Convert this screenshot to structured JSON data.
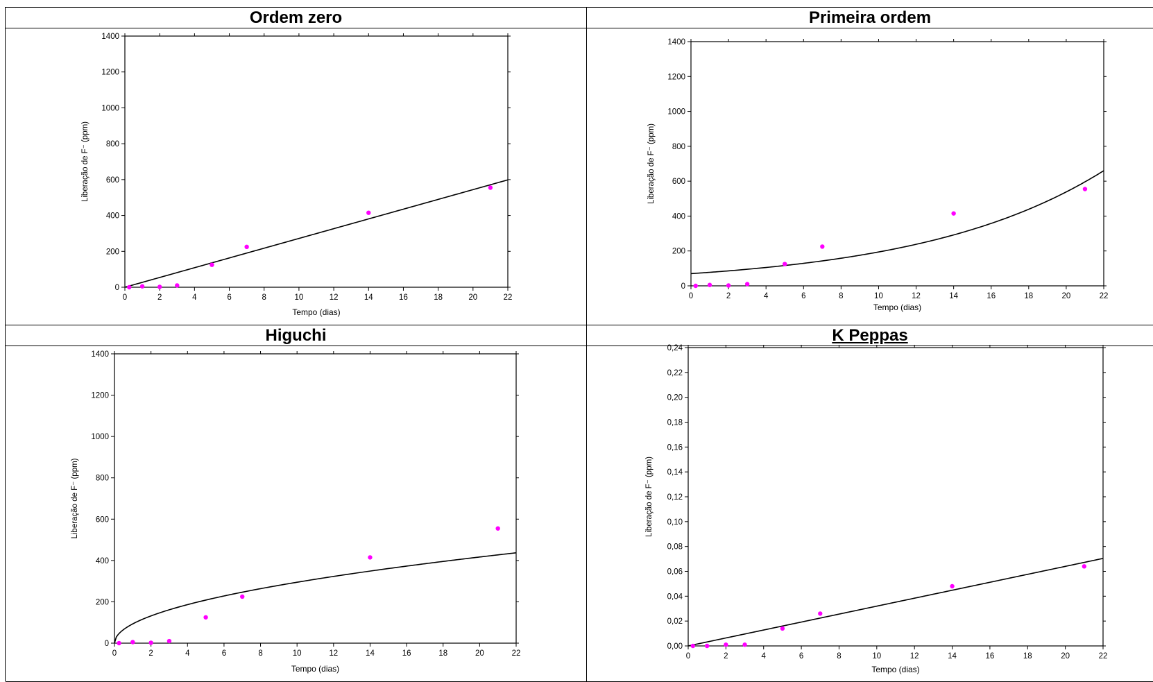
{
  "colors": {
    "points": "#ff00ff",
    "curve": "#000000",
    "frame": "#000000"
  },
  "chart_data": [
    {
      "type": "scatter",
      "title": "Ordem zero",
      "xlabel": "Tempo (dias)",
      "ylabel": "Liberação de F⁻ (ppm)",
      "xlim": [
        0,
        22
      ],
      "ylim": [
        0,
        1400
      ],
      "xticks": [
        "0",
        "2",
        "4",
        "6",
        "8",
        "10",
        "12",
        "14",
        "16",
        "18",
        "20",
        "22"
      ],
      "yticks": [
        "0",
        "200",
        "400",
        "600",
        "800",
        "1000",
        "1200",
        "1400"
      ],
      "points": {
        "x": [
          0.25,
          1,
          2,
          3,
          5,
          7,
          14,
          21
        ],
        "y": [
          0,
          5,
          2,
          10,
          125,
          225,
          415,
          555
        ]
      },
      "fit": {
        "model": "zero-order",
        "k": 27.2
      }
    },
    {
      "type": "scatter",
      "title": "Primeira ordem",
      "xlabel": "Tempo (dias)",
      "ylabel": "Liberação de F⁻ (ppm)",
      "xlim": [
        0,
        22
      ],
      "ylim": [
        0,
        1400
      ],
      "xticks": [
        "0",
        "2",
        "4",
        "6",
        "8",
        "10",
        "12",
        "14",
        "16",
        "18",
        "20",
        "22"
      ],
      "yticks": [
        "0",
        "200",
        "400",
        "600",
        "800",
        "1000",
        "1200",
        "1400"
      ],
      "points": {
        "x": [
          0.25,
          1,
          2,
          3,
          5,
          7,
          14,
          21
        ],
        "y": [
          0,
          5,
          2,
          10,
          125,
          225,
          415,
          555
        ]
      },
      "fit": {
        "model": "first-order",
        "a": 70,
        "k": 0.102
      }
    },
    {
      "type": "scatter",
      "title": "Higuchi",
      "xlabel": "Tempo (dias)",
      "ylabel": "Liberação de F⁻ (ppm)",
      "xlim": [
        0,
        22
      ],
      "ylim": [
        0,
        1400
      ],
      "xticks": [
        "0",
        "2",
        "4",
        "6",
        "8",
        "10",
        "12",
        "14",
        "16",
        "18",
        "20",
        "22"
      ],
      "yticks": [
        "0",
        "200",
        "400",
        "600",
        "800",
        "1000",
        "1200",
        "1400"
      ],
      "points": {
        "x": [
          0.25,
          1,
          2,
          3,
          5,
          7,
          14,
          21
        ],
        "y": [
          0,
          5,
          2,
          10,
          125,
          225,
          415,
          555
        ]
      },
      "fit": {
        "model": "higuchi",
        "k": 93.2
      }
    },
    {
      "type": "scatter",
      "title": "K Peppas",
      "xlabel": "Tempo (dias)",
      "ylabel": "Liberação de F⁻ (ppm)",
      "xlim": [
        0,
        22
      ],
      "ylim": [
        0,
        0.24
      ],
      "xticks": [
        "0",
        "2",
        "4",
        "6",
        "8",
        "10",
        "12",
        "14",
        "16",
        "18",
        "20",
        "22"
      ],
      "yticks": [
        "0,00",
        "0,02",
        "0,04",
        "0,06",
        "0,08",
        "0,10",
        "0,12",
        "0,14",
        "0,16",
        "0,18",
        "0,20",
        "0,22",
        "0,24"
      ],
      "points": {
        "x": [
          0.25,
          1,
          2,
          3,
          5,
          7,
          14,
          21
        ],
        "y": [
          0,
          0,
          0.001,
          0.001,
          0.014,
          0.026,
          0.048,
          0.064
        ]
      },
      "fit": {
        "model": "peppas",
        "k": 0.0032,
        "n": 1.0
      }
    }
  ]
}
